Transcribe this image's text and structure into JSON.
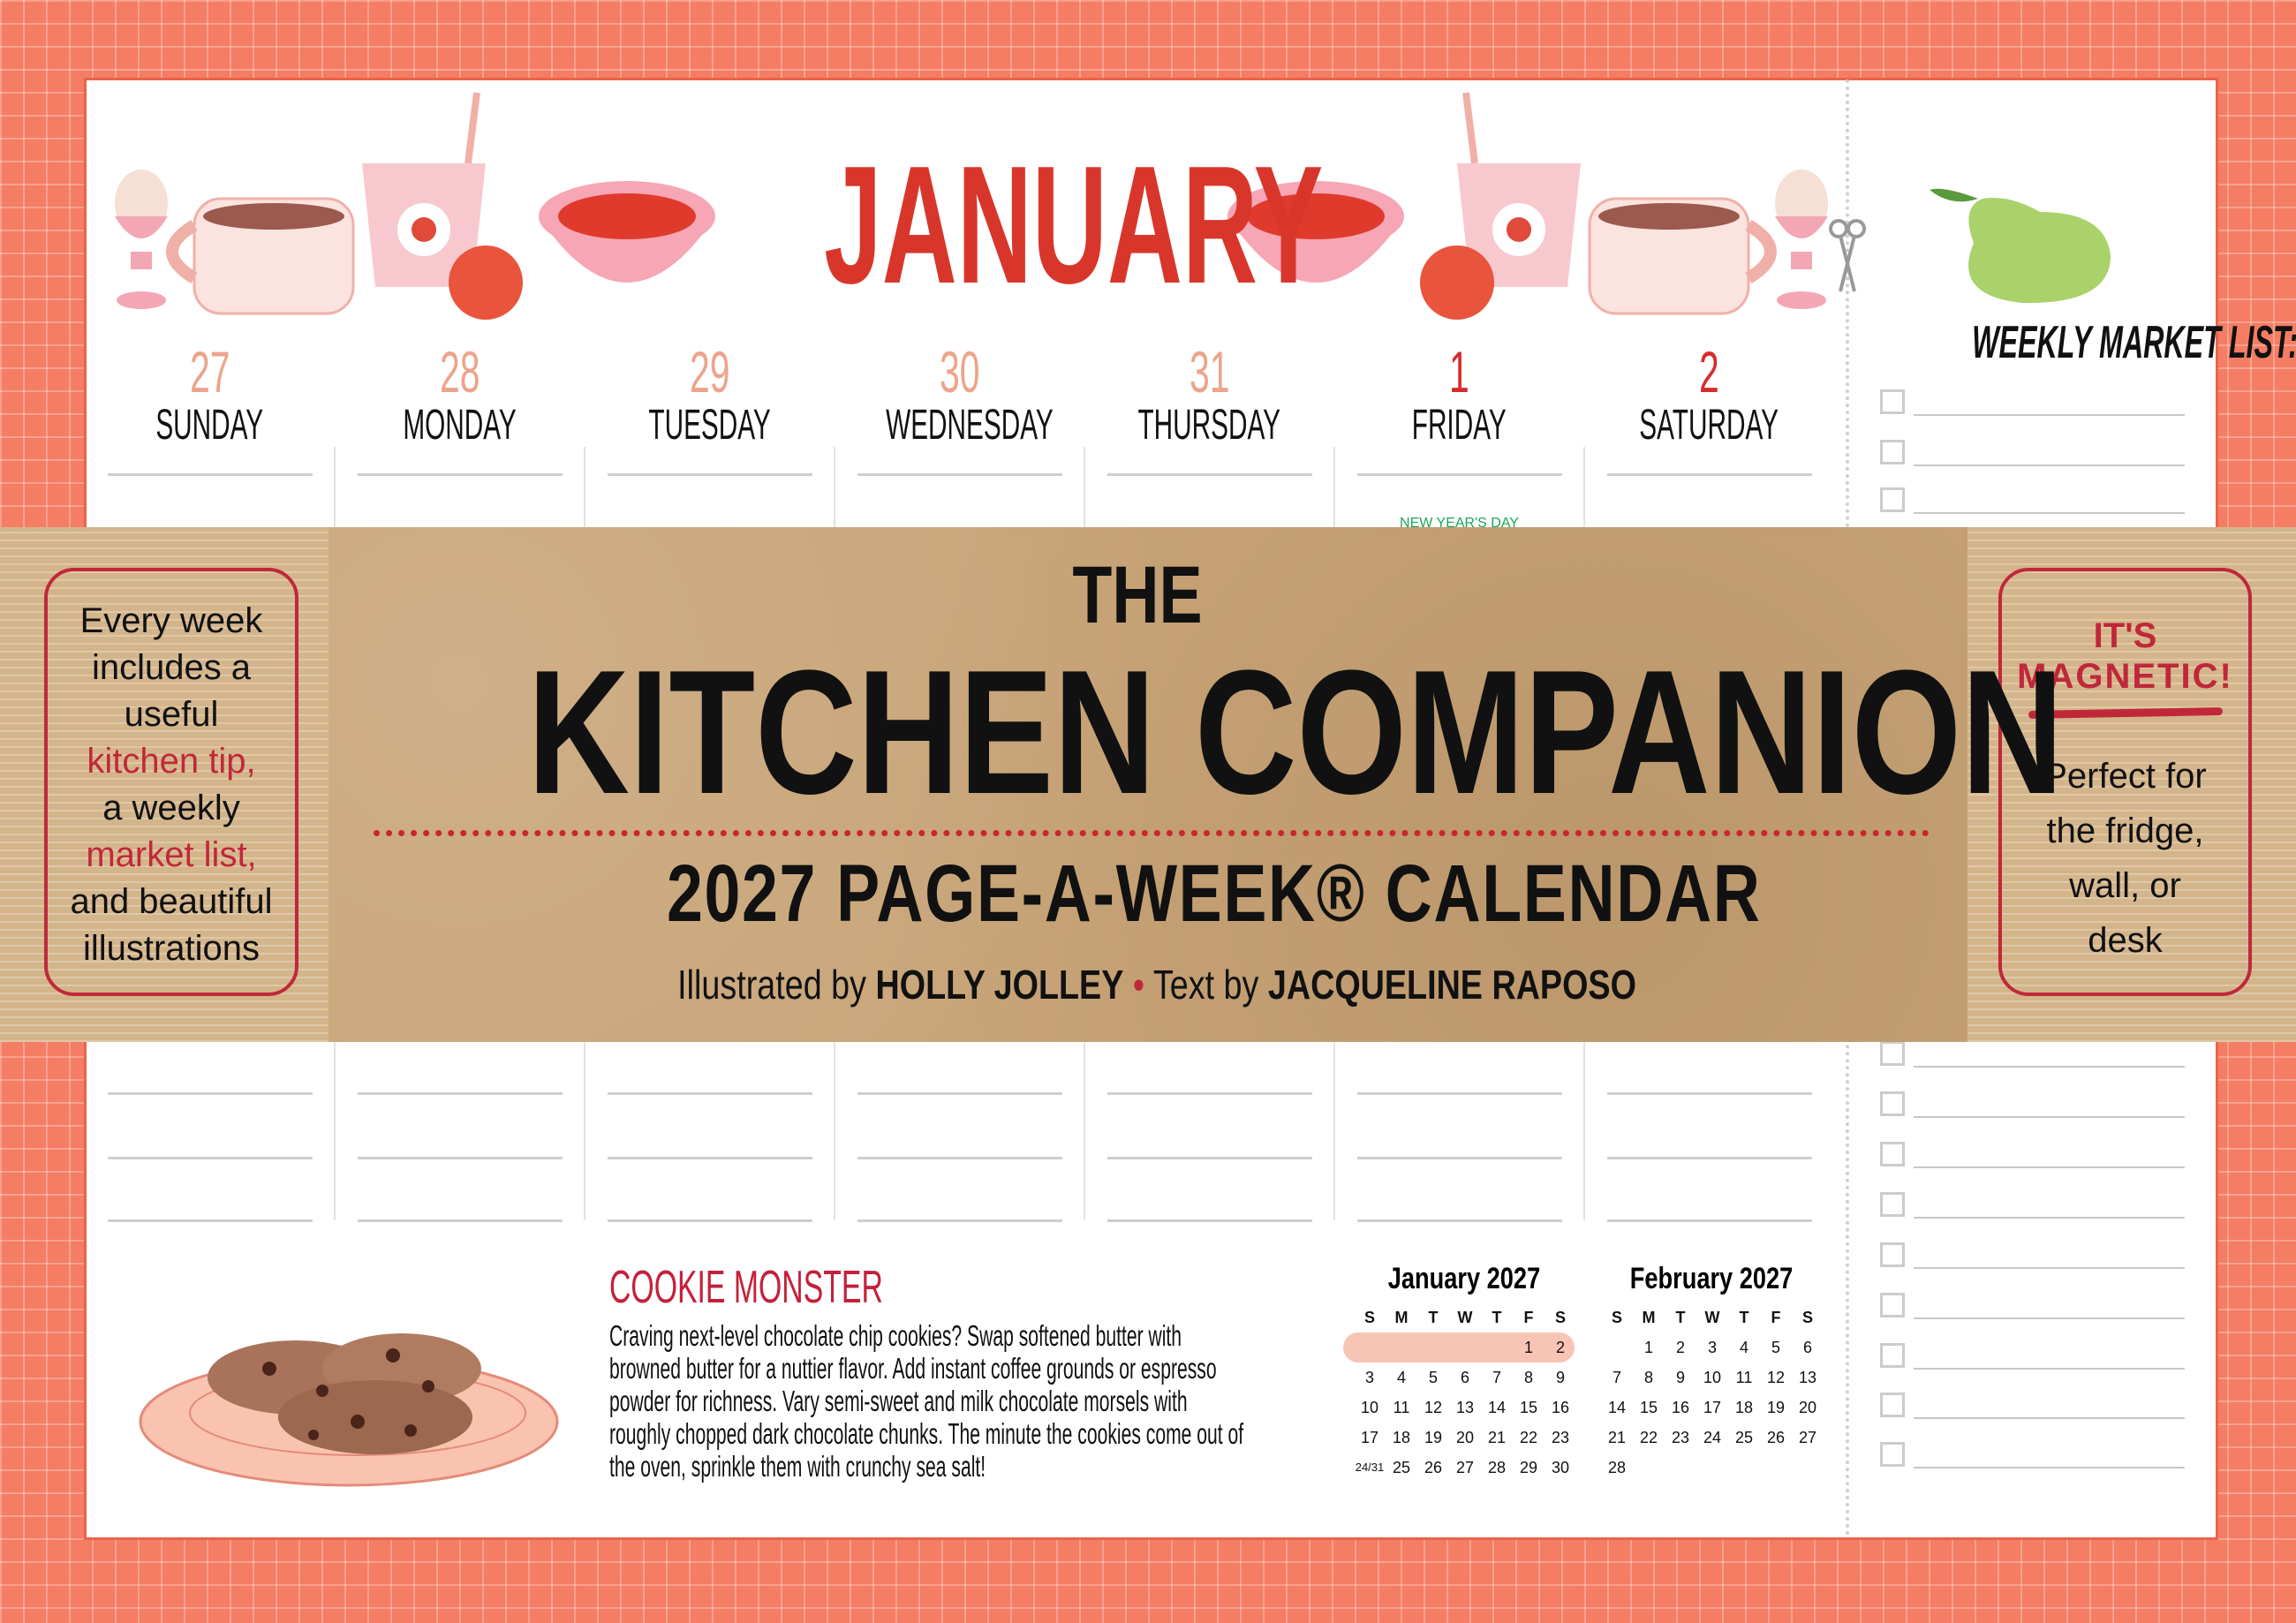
{
  "header": {
    "month": "JANUARY"
  },
  "days": [
    {
      "num": "27",
      "name": "SUNDAY",
      "current": false
    },
    {
      "num": "28",
      "name": "MONDAY",
      "current": false
    },
    {
      "num": "29",
      "name": "TUESDAY",
      "current": false
    },
    {
      "num": "30",
      "name": "WEDNESDAY",
      "current": false
    },
    {
      "num": "31",
      "name": "THURSDAY",
      "current": false
    },
    {
      "num": "1",
      "name": "FRIDAY",
      "current": true,
      "holiday": "NEW YEAR'S DAY"
    },
    {
      "num": "2",
      "name": "SATURDAY",
      "current": true
    }
  ],
  "market": {
    "title": "WEEKLY MARKET LIST:"
  },
  "cover": {
    "the": "THE",
    "title": "KITCHEN COMPANION",
    "subtitle": "2027 PAGE-A-WEEK® CALENDAR",
    "credit_pre": "Illustrated by ",
    "illustrator": "HOLLY JOLLEY",
    "bullet": "•",
    "credit_mid": "Text by ",
    "author": "JACQUELINE RAPOSO",
    "left_box": {
      "l1": "Every week",
      "l2": "includes a",
      "l3": "useful",
      "l4": "kitchen tip,",
      "l5": "a weekly",
      "l6": "market list,",
      "l7": "and beautiful",
      "l8": "illustrations"
    },
    "right_box": {
      "h1": "IT'S",
      "h2": "MAGNETIC!",
      "l1": "Perfect for",
      "l2": "the fridge,",
      "l3": "wall, or",
      "l4": "desk"
    }
  },
  "tip": {
    "title": "COOKIE MONSTER",
    "body": "Craving next-level chocolate chip cookies? Swap softened butter with browned butter for a nuttier flavor. Add instant coffee grounds or espresso powder for richness. Vary semi-sweet and milk chocolate morsels with roughly chopped dark chocolate chunks. The minute the cookies come out of the oven, sprinkle them with crunchy sea salt!"
  },
  "mini_calendars": [
    {
      "title": "January 2027",
      "headers": [
        "S",
        "M",
        "T",
        "W",
        "T",
        "F",
        "S"
      ],
      "cells": [
        "",
        "",
        "",
        "",
        "",
        "1",
        "2",
        "3",
        "4",
        "5",
        "6",
        "7",
        "8",
        "9",
        "10",
        "11",
        "12",
        "13",
        "14",
        "15",
        "16",
        "17",
        "18",
        "19",
        "20",
        "21",
        "22",
        "23",
        "24/31",
        "25",
        "26",
        "27",
        "28",
        "29",
        "30"
      ],
      "highlight_week": 1
    },
    {
      "title": "February 2027",
      "headers": [
        "S",
        "M",
        "T",
        "W",
        "T",
        "F",
        "S"
      ],
      "cells": [
        "",
        "1",
        "2",
        "3",
        "4",
        "5",
        "6",
        "7",
        "8",
        "9",
        "10",
        "11",
        "12",
        "13",
        "14",
        "15",
        "16",
        "17",
        "18",
        "19",
        "20",
        "21",
        "22",
        "23",
        "24",
        "25",
        "26",
        "27",
        "28"
      ]
    }
  ],
  "colors": {
    "accent": "#d9362b",
    "border_red": "#c0283a",
    "background": "#f47d64",
    "kraft": "#c8a477",
    "holiday": "#1aa657"
  }
}
